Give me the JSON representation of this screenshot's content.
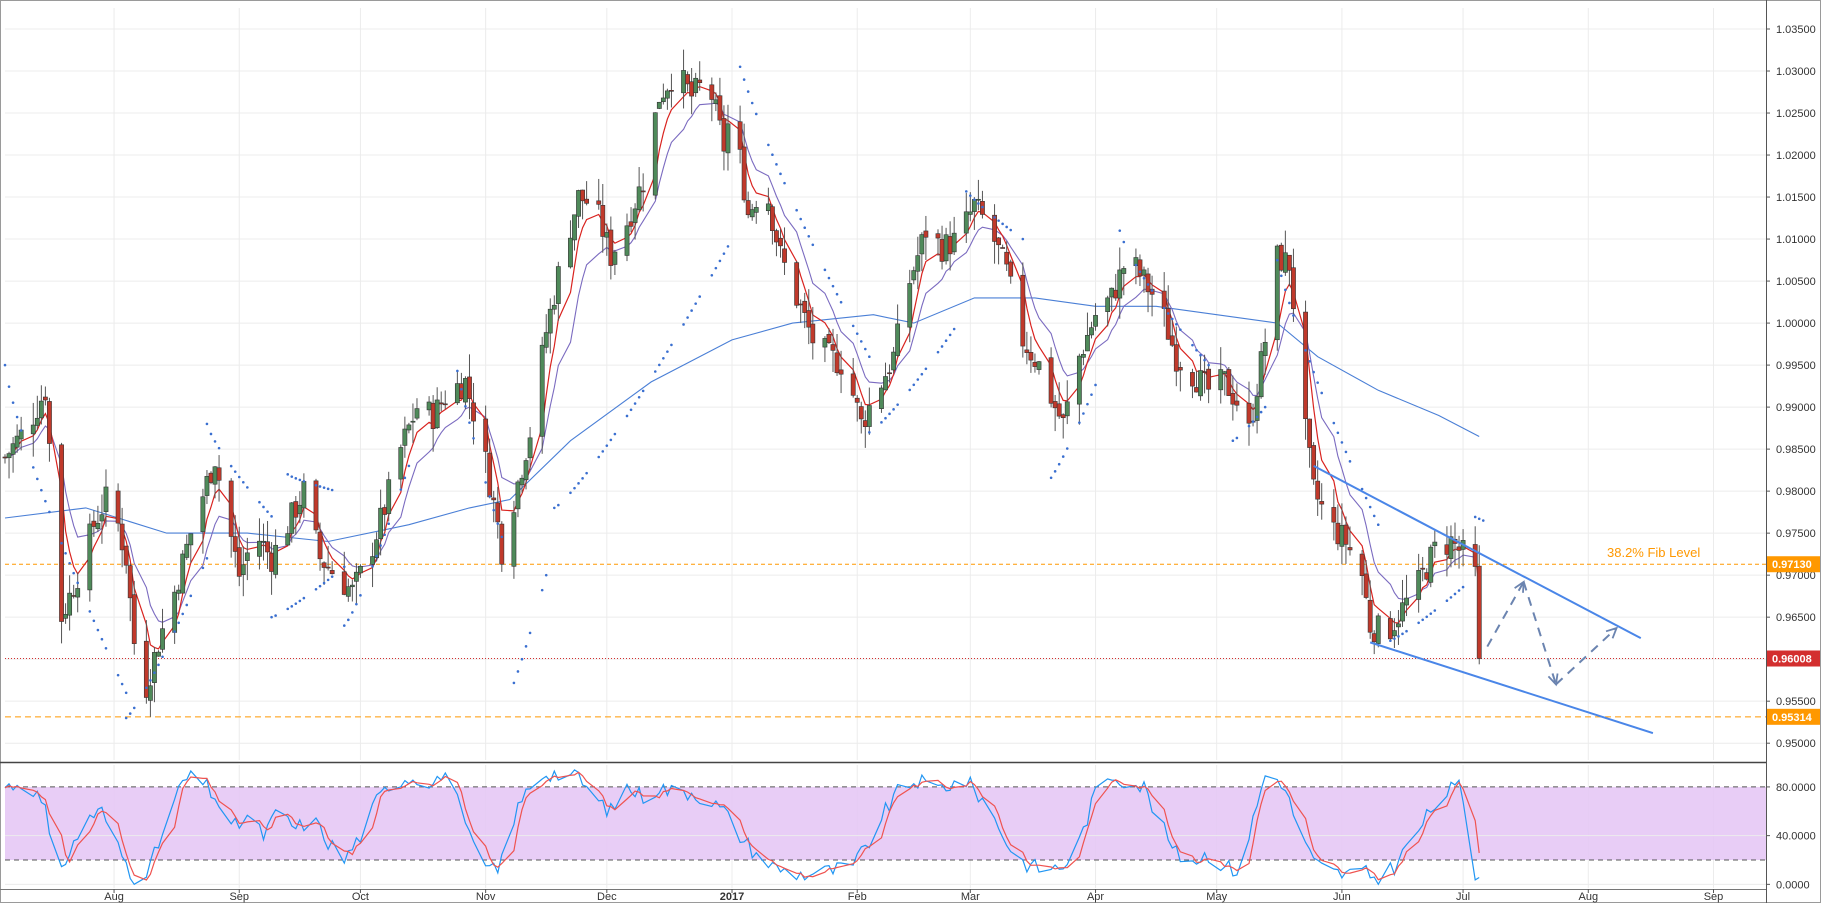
{
  "chart_data": {
    "type": "candlestick",
    "colors": {
      "up": "#4f8a5a",
      "down": "#c0392b",
      "ema_fast": "#d9231f",
      "ema_slow": "#7b6bc0",
      "sma_long": "#4a7fd6",
      "sar": "#3a6fd0",
      "trendline": "#4a86e8",
      "fib": "#ff9800",
      "current_price": "#d32f2f",
      "stoch_k": "#2196f3",
      "stoch_d": "#ef5350",
      "stoch_band": "#e6c8f5"
    },
    "x_axis": {
      "ticks": [
        {
          "label": "Aug",
          "day": 27
        },
        {
          "label": "Sep",
          "day": 58
        },
        {
          "label": "Oct",
          "day": 88
        },
        {
          "label": "Nov",
          "day": 119
        },
        {
          "label": "Dec",
          "day": 149
        },
        {
          "label": "2017",
          "day": 180,
          "bold": true
        },
        {
          "label": "Feb",
          "day": 211
        },
        {
          "label": "Mar",
          "day": 239
        },
        {
          "label": "Apr",
          "day": 270
        },
        {
          "label": "May",
          "day": 300
        },
        {
          "label": "Jun",
          "day": 331
        },
        {
          "label": "Jul",
          "day": 361
        },
        {
          "label": "Aug",
          "day": 392
        },
        {
          "label": "Sep",
          "day": 423
        }
      ],
      "range_days": [
        0,
        436
      ]
    },
    "price_axis": {
      "ylim": [
        0.948,
        1.0375
      ],
      "ticks": [
        "1.03500",
        "1.03000",
        "1.02500",
        "1.02000",
        "1.01500",
        "1.01000",
        "1.00500",
        "1.00000",
        "0.99500",
        "0.99000",
        "0.98500",
        "0.98000",
        "0.97500",
        "0.97000",
        "0.96500",
        "0.96000",
        "0.95500",
        "0.95000"
      ]
    },
    "stoch_axis": {
      "ylim": [
        -3,
        98
      ],
      "ticks": [
        "80.0000",
        "40.0000",
        "0.0000"
      ],
      "upper": 80,
      "lower": 20
    },
    "price_labels": {
      "fib": "0.97130",
      "current": "0.96008",
      "support": "0.95314"
    },
    "levels": {
      "fib": 0.9713,
      "current": 0.96008,
      "support": 0.95314
    },
    "annotations": {
      "fib_text": "38.2% Fib Level"
    },
    "price_waypoints": [
      [
        0,
        0.984
      ],
      [
        6,
        0.988
      ],
      [
        10,
        0.992
      ],
      [
        12,
        0.979
      ],
      [
        14,
        0.965
      ],
      [
        18,
        0.97
      ],
      [
        22,
        0.976
      ],
      [
        26,
        0.98
      ],
      [
        30,
        0.972
      ],
      [
        32,
        0.962
      ],
      [
        34,
        0.955
      ],
      [
        38,
        0.962
      ],
      [
        42,
        0.968
      ],
      [
        46,
        0.975
      ],
      [
        50,
        0.981
      ],
      [
        52,
        0.984
      ],
      [
        54,
        0.979
      ],
      [
        58,
        0.97
      ],
      [
        62,
        0.975
      ],
      [
        66,
        0.972
      ],
      [
        70,
        0.976
      ],
      [
        74,
        0.98
      ],
      [
        78,
        0.972
      ],
      [
        82,
        0.97
      ],
      [
        86,
        0.968
      ],
      [
        90,
        0.972
      ],
      [
        94,
        0.978
      ],
      [
        98,
        0.985
      ],
      [
        102,
        0.99
      ],
      [
        106,
        0.989
      ],
      [
        110,
        0.992
      ],
      [
        114,
        0.993
      ],
      [
        118,
        0.986
      ],
      [
        122,
        0.976
      ],
      [
        124,
        0.97
      ],
      [
        126,
        0.979
      ],
      [
        130,
        0.987
      ],
      [
        134,
        0.999
      ],
      [
        138,
        1.008
      ],
      [
        142,
        1.015
      ],
      [
        146,
        1.014
      ],
      [
        150,
        1.008
      ],
      [
        154,
        1.012
      ],
      [
        158,
        1.017
      ],
      [
        162,
        1.027
      ],
      [
        166,
        1.03
      ],
      [
        170,
        1.027
      ],
      [
        174,
        1.029
      ],
      [
        178,
        1.021
      ],
      [
        180,
        1.026
      ],
      [
        184,
        1.013
      ],
      [
        188,
        1.017
      ],
      [
        192,
        1.008
      ],
      [
        196,
        1.003
      ],
      [
        200,
        0.998
      ],
      [
        204,
        0.996
      ],
      [
        208,
        0.995
      ],
      [
        212,
        0.988
      ],
      [
        216,
        0.992
      ],
      [
        220,
        0.996
      ],
      [
        224,
        1.005
      ],
      [
        228,
        1.011
      ],
      [
        232,
        1.009
      ],
      [
        236,
        1.01
      ],
      [
        240,
        1.014
      ],
      [
        244,
        1.011
      ],
      [
        248,
        1.006
      ],
      [
        252,
        0.998
      ],
      [
        256,
        0.995
      ],
      [
        260,
        0.99
      ],
      [
        262,
        0.988
      ],
      [
        266,
        0.996
      ],
      [
        270,
        1.001
      ],
      [
        274,
        1.003
      ],
      [
        278,
        1.008
      ],
      [
        282,
        1.005
      ],
      [
        286,
        1.002
      ],
      [
        290,
        0.996
      ],
      [
        294,
        0.994
      ],
      [
        298,
        0.992
      ],
      [
        302,
        0.993
      ],
      [
        306,
        0.99
      ],
      [
        308,
        0.987
      ],
      [
        312,
        0.998
      ],
      [
        314,
        1.008
      ],
      [
        318,
        1.007
      ],
      [
        320,
        0.998
      ],
      [
        322,
        0.987
      ],
      [
        324,
        0.98
      ],
      [
        328,
        0.976
      ],
      [
        332,
        0.974
      ],
      [
        336,
        0.97
      ],
      [
        338,
        0.964
      ],
      [
        342,
        0.963
      ],
      [
        346,
        0.966
      ],
      [
        350,
        0.969
      ],
      [
        354,
        0.973
      ],
      [
        358,
        0.974
      ],
      [
        362,
        0.972
      ],
      [
        364,
        0.97
      ],
      [
        365,
        0.9605
      ]
    ],
    "sar_segments": [
      {
        "days": [
          0,
          30
        ],
        "from": 0.995,
        "to": 0.956,
        "above": true
      },
      {
        "days": [
          30,
          50
        ],
        "from": 0.953,
        "to": 0.972,
        "above": false
      },
      {
        "days": [
          50,
          66
        ],
        "from": 0.988,
        "to": 0.977,
        "above": true
      },
      {
        "days": [
          66,
          84
        ],
        "from": 0.965,
        "to": 0.971,
        "above": false
      },
      {
        "days": [
          70,
          82
        ],
        "from": 0.982,
        "to": 0.98,
        "above": true
      },
      {
        "days": [
          84,
          100
        ],
        "from": 0.964,
        "to": 0.983,
        "above": false
      },
      {
        "days": [
          110,
          124
        ],
        "from": 1.0,
        "to": 0.973,
        "above": true
      },
      {
        "days": [
          124,
          134
        ],
        "from": 0.955,
        "to": 0.97,
        "above": false
      },
      {
        "days": [
          136,
          180
        ],
        "from": 0.978,
        "to": 1.01,
        "above": false
      },
      {
        "days": [
          180,
          214
        ],
        "from": 1.0345,
        "to": 0.996,
        "above": true
      },
      {
        "days": [
          214,
          236
        ],
        "from": 0.987,
        "to": 1.0,
        "above": false
      },
      {
        "days": [
          236,
          252
        ],
        "from": 1.017,
        "to": 1.01,
        "above": true
      },
      {
        "days": [
          258,
          272
        ],
        "from": 0.981,
        "to": 0.995,
        "above": false
      },
      {
        "days": [
          276,
          298
        ],
        "from": 1.011,
        "to": 0.995,
        "above": true
      },
      {
        "days": [
          304,
          312
        ],
        "from": 0.986,
        "to": 0.99,
        "above": false
      },
      {
        "days": [
          314,
          340
        ],
        "from": 1.01,
        "to": 0.976,
        "above": true
      },
      {
        "days": [
          342,
          362
        ],
        "from": 0.962,
        "to": 0.969,
        "above": false
      },
      {
        "days": [
          362,
          366
        ],
        "from": 0.9775,
        "to": 0.9765,
        "above": true
      }
    ],
    "sma_long": [
      [
        0,
        0.9768
      ],
      [
        20,
        0.978
      ],
      [
        40,
        0.975
      ],
      [
        60,
        0.975
      ],
      [
        80,
        0.974
      ],
      [
        100,
        0.976
      ],
      [
        115,
        0.978
      ],
      [
        125,
        0.979
      ],
      [
        140,
        0.986
      ],
      [
        160,
        0.993
      ],
      [
        180,
        0.998
      ],
      [
        195,
        1.0
      ],
      [
        215,
        1.001
      ],
      [
        225,
        1.0
      ],
      [
        240,
        1.003
      ],
      [
        255,
        1.003
      ],
      [
        270,
        1.002
      ],
      [
        285,
        1.002
      ],
      [
        300,
        1.001
      ],
      [
        315,
        1.0
      ],
      [
        325,
        0.996
      ],
      [
        340,
        0.992
      ],
      [
        355,
        0.989
      ],
      [
        365,
        0.9865
      ]
    ],
    "stoch_waypoints": [
      [
        0,
        80
      ],
      [
        6,
        85
      ],
      [
        10,
        60
      ],
      [
        12,
        10
      ],
      [
        16,
        25
      ],
      [
        20,
        55
      ],
      [
        24,
        60
      ],
      [
        28,
        30
      ],
      [
        32,
        5
      ],
      [
        36,
        15
      ],
      [
        40,
        50
      ],
      [
        44,
        85
      ],
      [
        48,
        88
      ],
      [
        52,
        72
      ],
      [
        56,
        45
      ],
      [
        60,
        55
      ],
      [
        64,
        40
      ],
      [
        68,
        62
      ],
      [
        72,
        45
      ],
      [
        76,
        55
      ],
      [
        80,
        35
      ],
      [
        84,
        20
      ],
      [
        88,
        40
      ],
      [
        92,
        68
      ],
      [
        96,
        85
      ],
      [
        100,
        88
      ],
      [
        104,
        85
      ],
      [
        108,
        88
      ],
      [
        112,
        80
      ],
      [
        114,
        45
      ],
      [
        118,
        15
      ],
      [
        122,
        10
      ],
      [
        126,
        55
      ],
      [
        130,
        82
      ],
      [
        134,
        92
      ],
      [
        138,
        90
      ],
      [
        142,
        88
      ],
      [
        146,
        70
      ],
      [
        150,
        60
      ],
      [
        154,
        80
      ],
      [
        158,
        72
      ],
      [
        162,
        80
      ],
      [
        166,
        75
      ],
      [
        170,
        76
      ],
      [
        174,
        70
      ],
      [
        178,
        60
      ],
      [
        182,
        40
      ],
      [
        186,
        25
      ],
      [
        190,
        15
      ],
      [
        194,
        10
      ],
      [
        198,
        8
      ],
      [
        202,
        10
      ],
      [
        206,
        12
      ],
      [
        210,
        15
      ],
      [
        214,
        35
      ],
      [
        218,
        60
      ],
      [
        222,
        80
      ],
      [
        226,
        85
      ],
      [
        230,
        78
      ],
      [
        234,
        82
      ],
      [
        238,
        85
      ],
      [
        242,
        70
      ],
      [
        246,
        48
      ],
      [
        250,
        22
      ],
      [
        254,
        15
      ],
      [
        258,
        12
      ],
      [
        262,
        15
      ],
      [
        266,
        35
      ],
      [
        270,
        75
      ],
      [
        274,
        90
      ],
      [
        278,
        85
      ],
      [
        282,
        80
      ],
      [
        286,
        50
      ],
      [
        290,
        25
      ],
      [
        294,
        20
      ],
      [
        298,
        25
      ],
      [
        302,
        15
      ],
      [
        306,
        10
      ],
      [
        308,
        40
      ],
      [
        312,
        90
      ],
      [
        316,
        85
      ],
      [
        320,
        50
      ],
      [
        324,
        18
      ],
      [
        328,
        10
      ],
      [
        332,
        8
      ],
      [
        336,
        10
      ],
      [
        340,
        5
      ],
      [
        344,
        15
      ],
      [
        348,
        35
      ],
      [
        352,
        55
      ],
      [
        356,
        75
      ],
      [
        360,
        80
      ],
      [
        362,
        60
      ],
      [
        364,
        8
      ],
      [
        366,
        6
      ]
    ]
  }
}
